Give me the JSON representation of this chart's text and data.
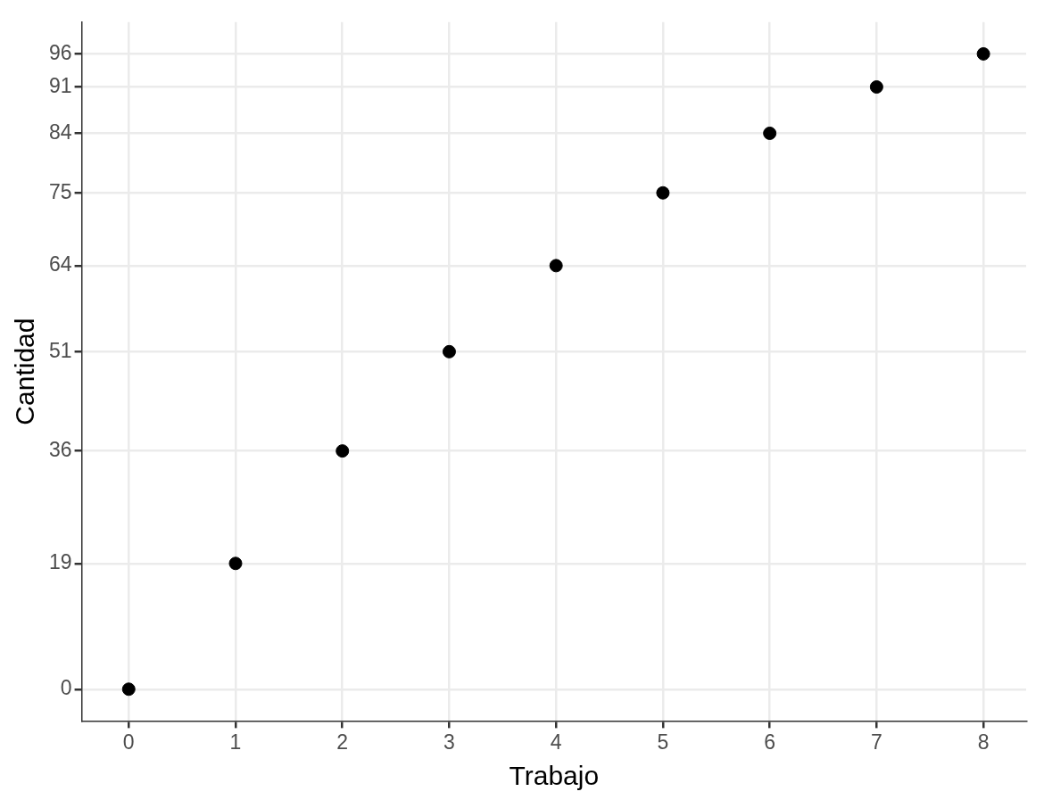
{
  "chart_data": {
    "type": "scatter",
    "xlabel": "Trabajo",
    "ylabel": "Cantidad",
    "x": [
      0,
      1,
      2,
      3,
      4,
      5,
      6,
      7,
      8
    ],
    "series": [
      {
        "color": "#000000",
        "values": [
          0,
          19,
          36,
          51,
          64,
          75,
          84,
          91,
          96
        ]
      }
    ],
    "xlim": [
      -0.44,
      8.4
    ],
    "xticks": [
      0,
      1,
      2,
      3,
      4,
      5,
      6,
      7,
      8
    ],
    "ylim": [
      -4.8,
      100.8
    ],
    "yticks": [
      0,
      19,
      36,
      51,
      64,
      75,
      84,
      91,
      96
    ],
    "grid": true,
    "legend": false,
    "marker": "circle"
  }
}
